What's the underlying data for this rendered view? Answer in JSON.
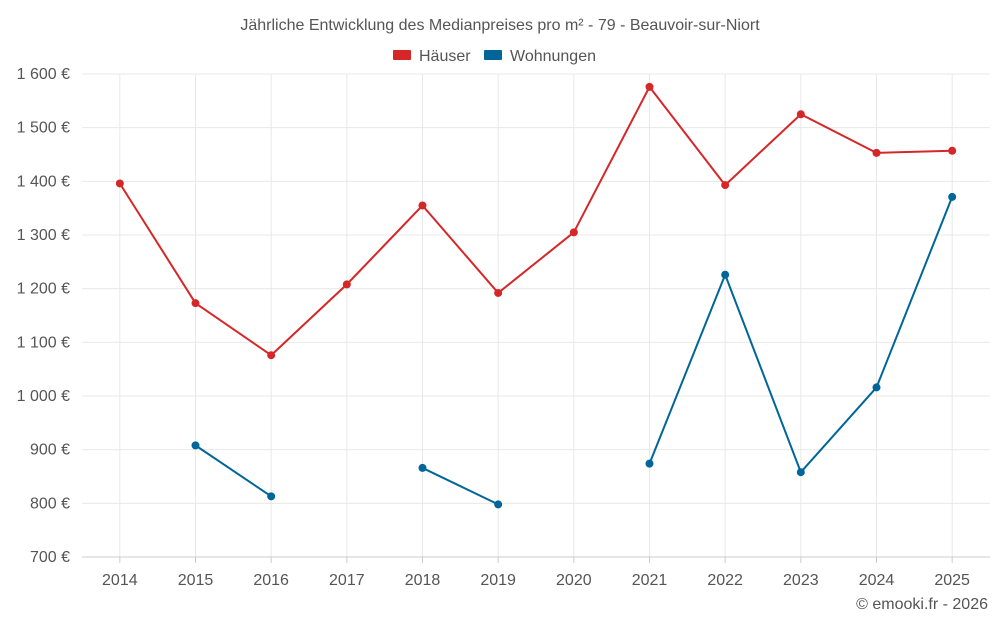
{
  "chart_data": {
    "type": "line",
    "title": "Jährliche Entwicklung des Medianpreises pro m² - 79 - Beauvoir-sur-Niort",
    "categories": [
      "2014",
      "2015",
      "2016",
      "2017",
      "2018",
      "2019",
      "2020",
      "2021",
      "2022",
      "2023",
      "2024",
      "2025"
    ],
    "ylim": [
      700,
      1600
    ],
    "yticks": [
      700,
      800,
      900,
      1000,
      1100,
      1200,
      1300,
      1400,
      1500,
      1600
    ],
    "ytick_labels": [
      "700 €",
      "800 €",
      "900 €",
      "1 000 €",
      "1 100 €",
      "1 200 €",
      "1 300 €",
      "1 400 €",
      "1 500 €",
      "1 600 €"
    ],
    "grid": true,
    "legend_position": "top-center",
    "series": [
      {
        "name": "Häuser",
        "color": "#d62728",
        "values": [
          1396,
          1173,
          1076,
          1208,
          1355,
          1192,
          1305,
          1576,
          1393,
          1525,
          1453,
          1457
        ]
      },
      {
        "name": "Wohnungen",
        "color": "#006699",
        "values": [
          null,
          908,
          813,
          null,
          866,
          798,
          null,
          874,
          1226,
          858,
          1016,
          1371
        ]
      }
    ]
  },
  "credit": "© emooki.fr - 2026"
}
